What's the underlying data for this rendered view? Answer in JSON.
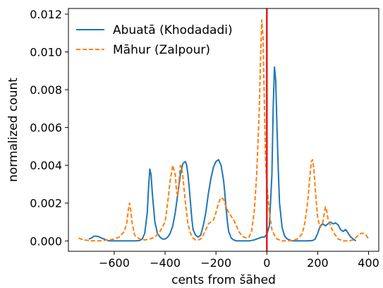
{
  "chart_data": {
    "type": "line",
    "xlabel": "cents from šāhed",
    "ylabel": "normalized count",
    "xlim": [
      -780,
      440
    ],
    "ylim": [
      -0.00055,
      0.0123
    ],
    "xticks": [
      -600,
      -400,
      -200,
      0,
      200,
      400
    ],
    "xtick_labels": [
      "−600",
      "−400",
      "−200",
      "0",
      "200",
      "400"
    ],
    "yticks": [
      0.0,
      0.002,
      0.004,
      0.006,
      0.008,
      0.01,
      0.012
    ],
    "ytick_labels": [
      "0.000",
      "0.002",
      "0.004",
      "0.006",
      "0.008",
      "0.010",
      "0.012"
    ],
    "grid": false,
    "legend_position": "top-left",
    "reference_line": {
      "x": 0,
      "color": "#e41a1c"
    },
    "series": [
      {
        "name": "Abuatā (Khodadadi)",
        "color": "#1f77b4",
        "dash": "solid",
        "x": [
          -700,
          -690,
          -680,
          -670,
          -660,
          -650,
          -640,
          -630,
          -620,
          -600,
          -580,
          -560,
          -540,
          -520,
          -500,
          -490,
          -480,
          -470,
          -465,
          -460,
          -455,
          -450,
          -440,
          -430,
          -420,
          -410,
          -400,
          -390,
          -380,
          -370,
          -360,
          -350,
          -340,
          -330,
          -320,
          -315,
          -310,
          -305,
          -300,
          -295,
          -290,
          -280,
          -270,
          -260,
          -250,
          -240,
          -230,
          -220,
          -210,
          -200,
          -190,
          -180,
          -170,
          -165,
          -160,
          -155,
          -150,
          -140,
          -130,
          -120,
          -110,
          -100,
          -90,
          -80,
          -70,
          -60,
          -50,
          -40,
          -30,
          -20,
          -10,
          0,
          10,
          20,
          25,
          30,
          35,
          40,
          45,
          50,
          60,
          70,
          80,
          100,
          120,
          140,
          160,
          180,
          190,
          200,
          210,
          220,
          230,
          240,
          250,
          260,
          270,
          280,
          290,
          300,
          310,
          320,
          330,
          340,
          350
        ],
        "y": [
          0.0001,
          0.00015,
          0.00025,
          0.00025,
          0.00022,
          0.00015,
          0.0001,
          5e-05,
          0.0,
          0.0,
          0.0,
          0.0,
          0.0,
          0.0,
          2e-05,
          0.0001,
          0.0004,
          0.0015,
          0.0028,
          0.0038,
          0.0035,
          0.0025,
          0.001,
          0.0004,
          0.0002,
          0.0001,
          0.0001,
          0.0002,
          0.0004,
          0.0008,
          0.0015,
          0.0025,
          0.0035,
          0.0041,
          0.0042,
          0.004,
          0.0035,
          0.0028,
          0.002,
          0.0012,
          0.0006,
          0.0003,
          0.0002,
          0.0003,
          0.0008,
          0.0015,
          0.0025,
          0.0033,
          0.0039,
          0.0042,
          0.0043,
          0.004,
          0.0032,
          0.0025,
          0.0017,
          0.001,
          0.0005,
          0.00015,
          5e-05,
          0.0,
          0.0,
          0.0,
          0.0,
          0.0,
          0.0,
          2e-05,
          5e-05,
          0.0001,
          0.00015,
          0.0002,
          0.0002,
          0.00035,
          0.0008,
          0.0035,
          0.007,
          0.0092,
          0.0085,
          0.006,
          0.0038,
          0.002,
          0.0007,
          0.00025,
          0.0001,
          0.0,
          0.0,
          0.0,
          0.0,
          2e-05,
          0.0001,
          0.0004,
          0.0008,
          0.0009,
          0.0008,
          0.0009,
          0.001,
          0.0009,
          0.00095,
          0.00085,
          0.0006,
          0.0005,
          0.0006,
          0.0004,
          0.0002,
          0.0001,
          0.0
        ]
      },
      {
        "name": "Māhur (Zalpour)",
        "color": "#ff7f0e",
        "dash": "dashed",
        "x": [
          -740,
          -720,
          -700,
          -680,
          -660,
          -640,
          -620,
          -600,
          -580,
          -560,
          -550,
          -545,
          -540,
          -535,
          -530,
          -520,
          -500,
          -480,
          -460,
          -440,
          -420,
          -400,
          -390,
          -380,
          -370,
          -360,
          -355,
          -350,
          -345,
          -340,
          -335,
          -330,
          -320,
          -310,
          -300,
          -290,
          -280,
          -270,
          -260,
          -250,
          -240,
          -230,
          -220,
          -210,
          -200,
          -190,
          -180,
          -170,
          -160,
          -150,
          -140,
          -130,
          -120,
          -110,
          -100,
          -90,
          -80,
          -70,
          -60,
          -50,
          -40,
          -30,
          -25,
          -20,
          -15,
          -10,
          -5,
          0,
          10,
          20,
          30,
          40,
          60,
          80,
          100,
          120,
          140,
          150,
          160,
          170,
          175,
          180,
          185,
          190,
          200,
          210,
          220,
          225,
          230,
          235,
          240,
          250,
          260,
          280,
          300,
          320,
          340,
          360,
          370,
          380,
          390,
          400
        ],
        "y": [
          0.00015,
          5e-05,
          2e-05,
          0.0,
          0.0,
          3e-05,
          5e-05,
          0.0001,
          0.0002,
          0.0005,
          0.001,
          0.0016,
          0.002,
          0.0016,
          0.001,
          0.0003,
          0.0001,
          5e-05,
          0.0001,
          0.0002,
          0.0005,
          0.001,
          0.002,
          0.0032,
          0.004,
          0.0035,
          0.0026,
          0.0024,
          0.0032,
          0.004,
          0.0039,
          0.0034,
          0.002,
          0.0009,
          0.0004,
          0.00015,
          5e-05,
          5e-05,
          0.0001,
          0.0003,
          0.0006,
          0.0009,
          0.001,
          0.0011,
          0.0015,
          0.002,
          0.0023,
          0.0022,
          0.0018,
          0.0015,
          0.0013,
          0.0011,
          0.0008,
          0.0005,
          0.0003,
          0.0002,
          0.00015,
          0.0002,
          0.0005,
          0.0015,
          0.0035,
          0.0068,
          0.0095,
          0.0117,
          0.0108,
          0.0075,
          0.0042,
          0.003,
          0.0015,
          0.0006,
          0.0003,
          0.0001,
          0.0,
          0.0,
          2e-05,
          0.0001,
          0.0004,
          0.001,
          0.002,
          0.0035,
          0.0042,
          0.0043,
          0.0038,
          0.0028,
          0.0012,
          0.0007,
          0.001,
          0.0014,
          0.0018,
          0.0016,
          0.0012,
          0.0008,
          0.0005,
          0.0001,
          0.0,
          0.0,
          5e-05,
          0.0003,
          0.0004,
          0.0004,
          0.0003,
          0.0001
        ]
      }
    ]
  }
}
